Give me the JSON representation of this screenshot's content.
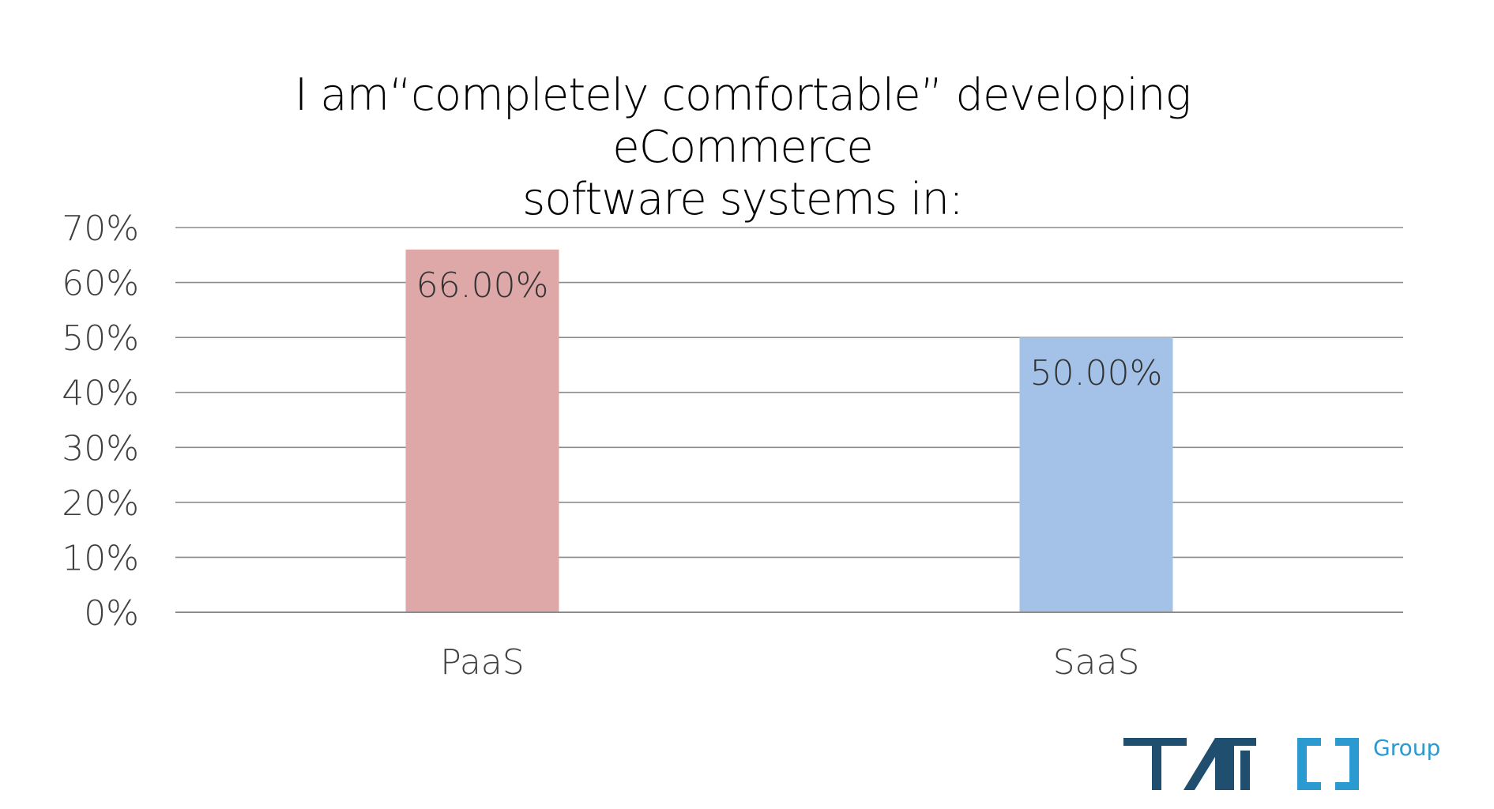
{
  "title_lines": [
    "I am“completely comfortable” developing eCommerce",
    "software systems in:"
  ],
  "colors": {
    "paas_bar": "#dea8a8",
    "saas_bar": "#a4c2e8",
    "gridline": "#8c8c8c",
    "axis_text": "#404040",
    "logo_dark": "#1f4e6e",
    "logo_light": "#2a9ad0"
  },
  "logo": {
    "text": "TMC",
    "sub_text": "Group"
  },
  "chart_data": {
    "type": "bar",
    "title": "I am“completely comfortable” developing eCommerce software systems in:",
    "categories": [
      "PaaS",
      "SaaS"
    ],
    "values": [
      66,
      50
    ],
    "data_labels": [
      "66.00%",
      "50.00%"
    ],
    "ylim": [
      0,
      70
    ],
    "yticks": [
      0,
      10,
      20,
      30,
      40,
      50,
      60,
      70
    ],
    "ytick_labels": [
      "0%",
      "10%",
      "20%",
      "30%",
      "40%",
      "50%",
      "60%",
      "70%"
    ],
    "xlabel": "",
    "ylabel": "",
    "grid": true,
    "legend": "none"
  }
}
